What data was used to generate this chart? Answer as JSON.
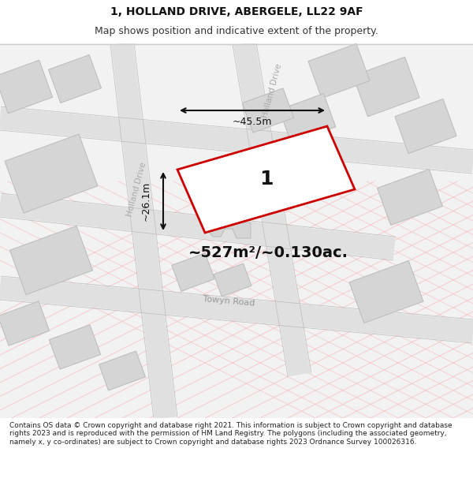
{
  "title": "1, HOLLAND DRIVE, ABERGELE, LL22 9AF",
  "subtitle": "Map shows position and indicative extent of the property.",
  "footer": "Contains OS data © Crown copyright and database right 2021. This information is subject to Crown copyright and database rights 2023 and is reproduced with the permission of HM Land Registry. The polygons (including the associated geometry, namely x, y co-ordinates) are subject to Crown copyright and database rights 2023 Ordnance Survey 100026316.",
  "area_label": "~527m²/~0.130ac.",
  "width_label": "~45.5m",
  "height_label": "~26.1m",
  "plot_label": "1",
  "bg_color": "#ffffff",
  "map_bg": "#f5f5f5",
  "road_color": "#e8e8e8",
  "road_stroke": "#cccccc",
  "plot_fill": "#ffffff",
  "plot_stroke": "#cc0000",
  "dim_color": "#1a1a1a",
  "text_color": "#333333",
  "road_label_color": "#888888",
  "stripe_color": "#f0c0c0",
  "building_fill": "#d8d8d8",
  "building_stroke": "#bbbbbb"
}
